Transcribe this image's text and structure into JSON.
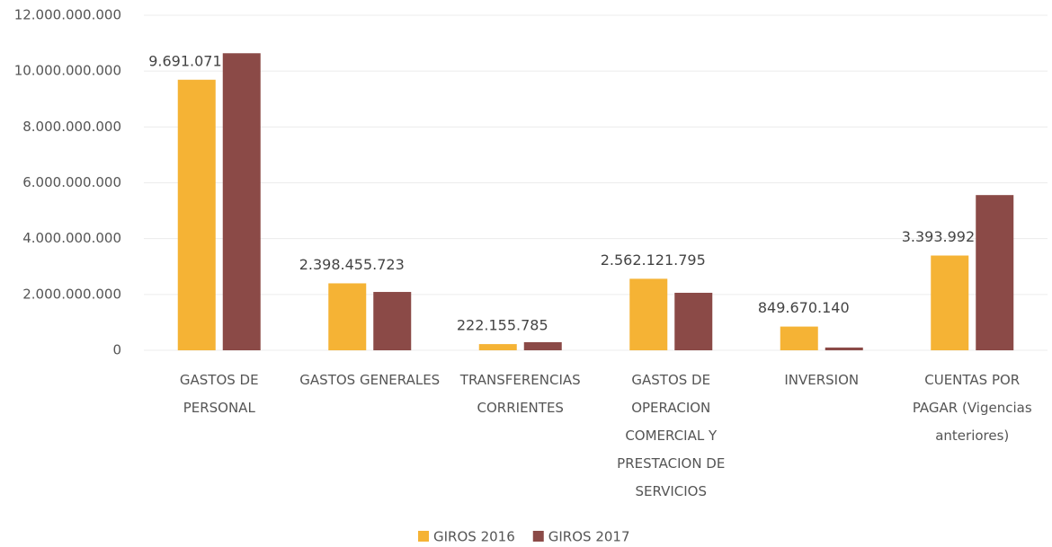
{
  "chart_data": {
    "type": "bar",
    "categories": [
      "GASTOS DE PERSONAL",
      "GASTOS GENERALES",
      "TRANSFERENCIAS CORRIENTES",
      "GASTOS DE OPERACION COMERCIAL Y PRESTACION DE SERVICIOS",
      "INVERSION",
      "CUENTAS POR PAGAR (Vigencias anteriores)"
    ],
    "series": [
      {
        "name": "GIROS 2016",
        "color": "#f5b335",
        "values": [
          9691071101,
          2398455723,
          222155785,
          2562121795,
          849670140,
          3393992104
        ],
        "value_labels": [
          "9.691.071.101",
          "2.398.455.723",
          "222.155.785",
          "2.562.121.795",
          "849.670.140",
          "3.393.992.104"
        ]
      },
      {
        "name": "GIROS 2017",
        "color": "#8b4a47",
        "values": [
          10640000000,
          2090000000,
          290000000,
          2060000000,
          100000000,
          5560000000
        ]
      }
    ],
    "ylim": [
      0,
      12000000000
    ],
    "yticks": [
      0,
      {
        "value": 2000000000,
        "label": "2.000.000.000"
      },
      {
        "value": 4000000000,
        "label": "4.000.000.000"
      },
      {
        "value": 6000000000,
        "label": "6.000.000.000"
      },
      {
        "value": 8000000000,
        "label": "8.000.000.000"
      },
      {
        "value": 10000000000,
        "label": "10.000.000.000"
      },
      {
        "value": 12000000000,
        "label": "12.000.000.000"
      }
    ],
    "grid": true,
    "legend": "bottom"
  }
}
